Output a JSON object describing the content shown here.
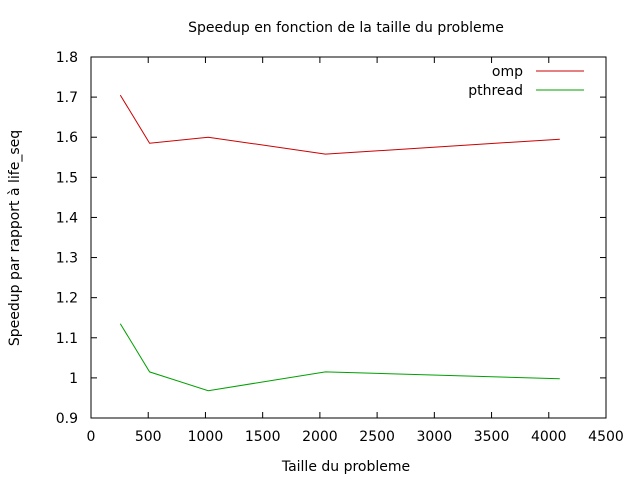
{
  "chart_data": {
    "type": "line",
    "title": "Speedup en fonction de la taille du probleme",
    "xlabel": "Taille du probleme",
    "ylabel": "Speedup par rapport à life_seq",
    "xlim": [
      0,
      4500
    ],
    "ylim": [
      0.9,
      1.8
    ],
    "xticks": [
      0,
      500,
      1000,
      1500,
      2000,
      2500,
      3000,
      3500,
      4000,
      4500
    ],
    "yticks": [
      0.9,
      1,
      1.1,
      1.2,
      1.3,
      1.4,
      1.5,
      1.6,
      1.7,
      1.8
    ],
    "grid": false,
    "legend_position": "top-right",
    "series": [
      {
        "name": "omp",
        "color": "#cc0000",
        "x": [
          256,
          512,
          1024,
          2048,
          4096
        ],
        "y": [
          1.705,
          1.585,
          1.6,
          1.558,
          1.595
        ]
      },
      {
        "name": "pthread",
        "color": "#00a000",
        "x": [
          256,
          512,
          1024,
          2048,
          4096
        ],
        "y": [
          1.135,
          1.015,
          0.968,
          1.015,
          0.998
        ]
      }
    ]
  }
}
